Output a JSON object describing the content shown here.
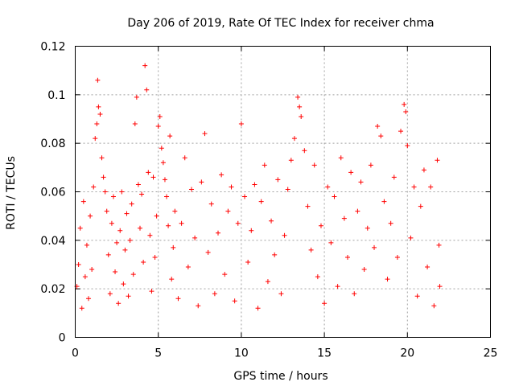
{
  "chart_data": {
    "type": "scatter",
    "title": "Day 206 of 2019, Rate Of TEC Index for receiver chma",
    "xlabel": "GPS time / hours",
    "ylabel": "ROTI / TECUs",
    "xlim": [
      0,
      25
    ],
    "ylim": [
      0,
      0.12
    ],
    "xticks": [
      0,
      5,
      10,
      15,
      20,
      25
    ],
    "xtick_labels": [
      "0",
      "5",
      "10",
      "15",
      "20",
      "25"
    ],
    "yticks": [
      0,
      0.02,
      0.04,
      0.06,
      0.08,
      0.1,
      0.12
    ],
    "ytick_labels": [
      "0",
      "0.02",
      "0.04",
      "0.06",
      "0.08",
      "0.1",
      "0.12"
    ],
    "grid": true,
    "marker": "plus",
    "color": "#ff0000",
    "series": [
      {
        "points": [
          [
            0.1,
            0.021
          ],
          [
            0.2,
            0.03
          ],
          [
            0.3,
            0.045
          ],
          [
            0.4,
            0.012
          ],
          [
            0.5,
            0.056
          ],
          [
            0.6,
            0.025
          ],
          [
            0.7,
            0.038
          ],
          [
            0.8,
            0.016
          ],
          [
            0.9,
            0.05
          ],
          [
            1.0,
            0.028
          ],
          [
            1.1,
            0.062
          ],
          [
            1.2,
            0.082
          ],
          [
            1.3,
            0.088
          ],
          [
            1.35,
            0.106
          ],
          [
            1.4,
            0.095
          ],
          [
            1.5,
            0.092
          ],
          [
            1.6,
            0.074
          ],
          [
            1.7,
            0.066
          ],
          [
            1.8,
            0.06
          ],
          [
            1.9,
            0.052
          ],
          [
            2.0,
            0.034
          ],
          [
            2.1,
            0.018
          ],
          [
            2.2,
            0.047
          ],
          [
            2.3,
            0.058
          ],
          [
            2.4,
            0.027
          ],
          [
            2.5,
            0.039
          ],
          [
            2.6,
            0.014
          ],
          [
            2.7,
            0.044
          ],
          [
            2.8,
            0.06
          ],
          [
            2.9,
            0.022
          ],
          [
            3.0,
            0.036
          ],
          [
            3.1,
            0.051
          ],
          [
            3.2,
            0.017
          ],
          [
            3.3,
            0.04
          ],
          [
            3.4,
            0.055
          ],
          [
            3.5,
            0.026
          ],
          [
            3.6,
            0.088
          ],
          [
            3.7,
            0.099
          ],
          [
            3.8,
            0.063
          ],
          [
            3.9,
            0.045
          ],
          [
            4.0,
            0.059
          ],
          [
            4.1,
            0.031
          ],
          [
            4.2,
            0.112
          ],
          [
            4.3,
            0.102
          ],
          [
            4.4,
            0.068
          ],
          [
            4.5,
            0.042
          ],
          [
            4.6,
            0.019
          ],
          [
            4.7,
            0.066
          ],
          [
            4.8,
            0.033
          ],
          [
            4.9,
            0.05
          ],
          [
            5.0,
            0.087
          ],
          [
            5.1,
            0.091
          ],
          [
            5.2,
            0.078
          ],
          [
            5.3,
            0.072
          ],
          [
            5.4,
            0.065
          ],
          [
            5.5,
            0.058
          ],
          [
            5.6,
            0.046
          ],
          [
            5.7,
            0.083
          ],
          [
            5.8,
            0.024
          ],
          [
            5.9,
            0.037
          ],
          [
            6.0,
            0.052
          ],
          [
            6.2,
            0.016
          ],
          [
            6.4,
            0.047
          ],
          [
            6.6,
            0.074
          ],
          [
            6.8,
            0.029
          ],
          [
            7.0,
            0.061
          ],
          [
            7.2,
            0.041
          ],
          [
            7.4,
            0.013
          ],
          [
            7.6,
            0.064
          ],
          [
            7.8,
            0.084
          ],
          [
            8.0,
            0.035
          ],
          [
            8.2,
            0.055
          ],
          [
            8.4,
            0.018
          ],
          [
            8.6,
            0.043
          ],
          [
            8.8,
            0.067
          ],
          [
            9.0,
            0.026
          ],
          [
            9.2,
            0.052
          ],
          [
            9.4,
            0.062
          ],
          [
            9.6,
            0.015
          ],
          [
            9.8,
            0.047
          ],
          [
            10.0,
            0.088
          ],
          [
            10.2,
            0.058
          ],
          [
            10.4,
            0.031
          ],
          [
            10.6,
            0.044
          ],
          [
            10.8,
            0.063
          ],
          [
            11.0,
            0.012
          ],
          [
            11.2,
            0.056
          ],
          [
            11.4,
            0.071
          ],
          [
            11.6,
            0.023
          ],
          [
            11.8,
            0.048
          ],
          [
            12.0,
            0.034
          ],
          [
            12.2,
            0.065
          ],
          [
            12.4,
            0.018
          ],
          [
            12.6,
            0.042
          ],
          [
            12.8,
            0.061
          ],
          [
            13.0,
            0.073
          ],
          [
            13.2,
            0.082
          ],
          [
            13.4,
            0.099
          ],
          [
            13.5,
            0.095
          ],
          [
            13.6,
            0.091
          ],
          [
            13.8,
            0.077
          ],
          [
            14.0,
            0.054
          ],
          [
            14.2,
            0.036
          ],
          [
            14.4,
            0.071
          ],
          [
            14.6,
            0.025
          ],
          [
            14.8,
            0.046
          ],
          [
            15.0,
            0.014
          ],
          [
            15.2,
            0.062
          ],
          [
            15.4,
            0.039
          ],
          [
            15.6,
            0.058
          ],
          [
            15.8,
            0.021
          ],
          [
            16.0,
            0.074
          ],
          [
            16.2,
            0.049
          ],
          [
            16.4,
            0.033
          ],
          [
            16.6,
            0.068
          ],
          [
            16.8,
            0.018
          ],
          [
            17.0,
            0.052
          ],
          [
            17.2,
            0.064
          ],
          [
            17.4,
            0.028
          ],
          [
            17.6,
            0.045
          ],
          [
            17.8,
            0.071
          ],
          [
            18.0,
            0.037
          ],
          [
            18.2,
            0.087
          ],
          [
            18.4,
            0.083
          ],
          [
            18.6,
            0.056
          ],
          [
            18.8,
            0.024
          ],
          [
            19.0,
            0.047
          ],
          [
            19.2,
            0.066
          ],
          [
            19.4,
            0.033
          ],
          [
            19.6,
            0.085
          ],
          [
            19.8,
            0.096
          ],
          [
            19.9,
            0.093
          ],
          [
            20.0,
            0.079
          ],
          [
            20.2,
            0.041
          ],
          [
            20.4,
            0.062
          ],
          [
            20.6,
            0.017
          ],
          [
            20.8,
            0.054
          ],
          [
            21.0,
            0.069
          ],
          [
            21.2,
            0.029
          ],
          [
            21.4,
            0.062
          ],
          [
            21.6,
            0.013
          ],
          [
            21.8,
            0.073
          ],
          [
            21.9,
            0.038
          ],
          [
            21.95,
            0.021
          ]
        ]
      }
    ]
  }
}
